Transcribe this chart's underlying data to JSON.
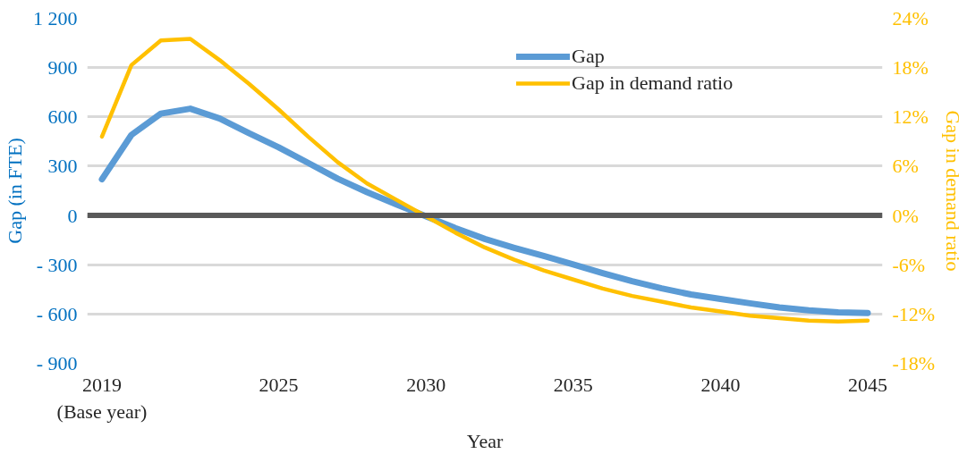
{
  "chart_data": {
    "type": "line",
    "xlabel": "Year",
    "ylabel": "Gap (in FTE)",
    "y2label": "Gap in demand ratio",
    "x": [
      2019,
      2020,
      2021,
      2022,
      2023,
      2024,
      2025,
      2026,
      2027,
      2028,
      2029,
      2030,
      2031,
      2032,
      2033,
      2034,
      2035,
      2036,
      2037,
      2038,
      2039,
      2040,
      2041,
      2042,
      2043,
      2044,
      2045
    ],
    "xlim": [
      2018.5,
      2045.5
    ],
    "xticks": [
      {
        "value": 2019,
        "label": "2019\n(Base year)"
      },
      2025,
      2030,
      2035,
      2040,
      2045
    ],
    "ylim": [
      -900,
      1200
    ],
    "yticks": [
      {
        "value": -900,
        "label": "- 900"
      },
      {
        "value": -600,
        "label": "- 600"
      },
      {
        "value": -300,
        "label": "- 300"
      },
      0,
      300,
      600,
      900,
      {
        "value": 1200,
        "label": "1 200"
      }
    ],
    "y2lim": [
      -18,
      24
    ],
    "y2ticks": [
      {
        "value": -18,
        "label": "-18%"
      },
      {
        "value": -12,
        "label": "-12%"
      },
      {
        "value": -6,
        "label": "-6%"
      },
      {
        "value": 0,
        "label": "0%"
      },
      {
        "value": 6,
        "label": "6%"
      },
      {
        "value": 12,
        "label": "12%"
      },
      {
        "value": 18,
        "label": "18%"
      },
      {
        "value": 24,
        "label": "24%"
      }
    ],
    "series": [
      {
        "name": "Gap",
        "color": "#5b9bd5",
        "values": [
          220,
          490,
          620,
          650,
          590,
          500,
          415,
          320,
          224,
          142,
          67,
          -5,
          -77,
          -143,
          -197,
          -247,
          -298,
          -351,
          -400,
          -444,
          -481,
          -508,
          -535,
          -560,
          -578,
          -590,
          -594
        ]
      },
      {
        "name": "Gap in demand ratio",
        "color": "#ffc000",
        "axis": "y2",
        "values": [
          9.6,
          18.3,
          21.3,
          21.5,
          18.9,
          16.0,
          12.9,
          9.6,
          6.5,
          3.9,
          1.9,
          -0.1,
          -2.1,
          -3.9,
          -5.4,
          -6.7,
          -7.8,
          -8.9,
          -9.8,
          -10.5,
          -11.2,
          -11.7,
          -12.2,
          -12.5,
          -12.8,
          -12.9,
          -12.8
        ]
      }
    ],
    "ref_lines": [
      {
        "axis": "y",
        "value": 0,
        "color": "#595959"
      }
    ],
    "grid": "y",
    "legend": "top right"
  }
}
